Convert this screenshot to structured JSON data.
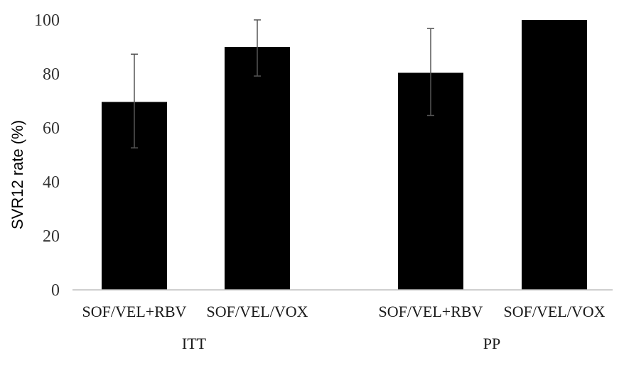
{
  "chart_data": {
    "type": "bar",
    "title": "",
    "xlabel": "",
    "ylabel": "SVR12 rate (%)",
    "ylim": [
      0,
      100
    ],
    "yticks": [
      "0",
      "20",
      "40",
      "60",
      "80",
      "100"
    ],
    "grid": false,
    "legend": "none",
    "groups": [
      {
        "label": "ITT",
        "categories": [
          "SOF/VEL+RBV",
          "SOF/VEL/VOX"
        ]
      },
      {
        "label": "PP",
        "categories": [
          "SOF/VEL+RBV",
          "SOF/VEL/VOX"
        ]
      }
    ],
    "bars": [
      {
        "group": "ITT",
        "category": "SOF/VEL+RBV",
        "value": 69.6,
        "err_low": 52.6,
        "err_high": 87.3
      },
      {
        "group": "ITT",
        "category": "SOF/VEL/VOX",
        "value": 90.0,
        "err_low": 79.2,
        "err_high": 100.0
      },
      {
        "group": "PP",
        "category": "SOF/VEL+RBV",
        "value": 80.4,
        "err_low": 64.6,
        "err_high": 96.8
      },
      {
        "group": "PP",
        "category": "SOF/VEL/VOX",
        "value": 100.0,
        "err_low": null,
        "err_high": null
      }
    ],
    "colors": {
      "bar": "#000000",
      "axis": "#bfbfbf",
      "errorbar": "#555555"
    }
  }
}
